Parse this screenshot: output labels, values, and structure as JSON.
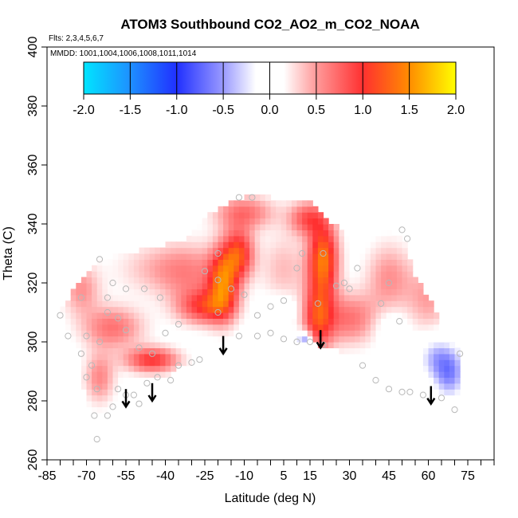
{
  "chart_data": {
    "type": "heatmap",
    "title": "ATOM3 Southbound CO2_AO2_m_CO2_NOAA",
    "flights_note": "Flts: 2,3,4,5,6,7",
    "dates_note": "MMDD: 1001,1004,1006,1008,1011,1014",
    "xlabel": "Latitude (deg N)",
    "ylabel": "Theta (C)",
    "xlim": [
      -85,
      85
    ],
    "ylim": [
      260,
      400
    ],
    "x_ticks": [
      -85,
      -70,
      -55,
      -40,
      -25,
      -10,
      5,
      15,
      30,
      45,
      60,
      75
    ],
    "x_tick_labels": [
      "-85",
      "-70",
      "-55",
      "-40",
      "-25",
      "-10",
      "5",
      "15",
      "30",
      "45",
      "60",
      "75"
    ],
    "x_minor_step": 5,
    "y_ticks": [
      260,
      280,
      300,
      320,
      340,
      360,
      380,
      400
    ],
    "y_tick_labels": [
      "260",
      "280",
      "300",
      "320",
      "340",
      "360",
      "380",
      "400"
    ],
    "colorbar": {
      "range": [
        -2.0,
        2.0
      ],
      "ticks": [
        -2.0,
        -1.5,
        -1.0,
        -0.5,
        0.0,
        0.5,
        1.0,
        1.5,
        2.0
      ],
      "tick_labels": [
        "-2.0",
        "-1.5",
        "-1.0",
        "-0.5",
        "0.0",
        "0.5",
        "1.0",
        "1.5",
        "2.0"
      ],
      "stops": [
        {
          "value": -2.0,
          "color": "#00e5ff"
        },
        {
          "value": -1.5,
          "color": "#1e90ff"
        },
        {
          "value": -1.0,
          "color": "#2030ff"
        },
        {
          "value": -0.5,
          "color": "#9a9aff"
        },
        {
          "value": -0.15,
          "color": "#ffffff"
        },
        {
          "value": 0.15,
          "color": "#ffffff"
        },
        {
          "value": 0.5,
          "color": "#ff9a9a"
        },
        {
          "value": 1.0,
          "color": "#ff3030"
        },
        {
          "value": 1.5,
          "color": "#ff8c00"
        },
        {
          "value": 2.0,
          "color": "#ffff00"
        }
      ]
    },
    "envelope": {
      "latitudes": [
        -80,
        -75,
        -70,
        -66,
        -60,
        -55,
        -50,
        -45,
        -40,
        -35,
        -30,
        -25,
        -20,
        -15,
        -10,
        -5,
        0,
        5,
        10,
        15,
        20,
        25,
        30,
        35,
        40,
        45,
        50,
        55,
        60,
        65,
        70,
        72
      ],
      "theta_bottom": [
        309,
        292,
        282,
        266,
        276,
        280,
        278,
        283,
        288,
        292,
        293,
        295,
        296,
        298,
        300,
        301,
        302,
        302,
        301,
        300,
        298,
        298,
        294,
        290,
        286,
        284,
        283,
        283,
        282,
        279,
        276,
        276
      ],
      "theta_top": [
        310,
        318,
        323,
        327,
        329,
        330,
        331,
        332,
        333,
        334,
        336,
        342,
        345,
        347,
        349,
        349,
        349,
        348,
        349,
        348,
        343,
        339,
        338,
        338,
        338,
        337,
        336,
        322,
        315,
        305,
        298,
        296
      ]
    },
    "anomalies": [
      {
        "lat": -18,
        "theta": 320,
        "value": 1.2,
        "spread_lat": 4,
        "spread_theta": 8
      },
      {
        "lat": -12,
        "theta": 330,
        "value": 1.0,
        "spread_lat": 4,
        "spread_theta": 6
      },
      {
        "lat": -25,
        "theta": 312,
        "value": 0.8,
        "spread_lat": 7,
        "spread_theta": 4
      },
      {
        "lat": 20,
        "theta": 328,
        "value": 1.3,
        "spread_lat": 4,
        "spread_theta": 9
      },
      {
        "lat": 18,
        "theta": 308,
        "value": 0.9,
        "spread_lat": 4,
        "spread_theta": 8
      },
      {
        "lat": 14,
        "theta": 342,
        "value": 0.7,
        "spread_lat": 5,
        "spread_theta": 4
      },
      {
        "lat": 30,
        "theta": 308,
        "value": 0.6,
        "spread_lat": 8,
        "spread_theta": 6
      },
      {
        "lat": -45,
        "theta": 294,
        "value": 0.9,
        "spread_lat": 7,
        "spread_theta": 3
      },
      {
        "lat": -60,
        "theta": 305,
        "value": 0.6,
        "spread_lat": 8,
        "spread_theta": 5
      },
      {
        "lat": -65,
        "theta": 288,
        "value": 0.5,
        "spread_lat": 4,
        "spread_theta": 6
      },
      {
        "lat": -40,
        "theta": 325,
        "value": 0.35,
        "spread_lat": 12,
        "spread_theta": 6
      },
      {
        "lat": -10,
        "theta": 344,
        "value": 0.6,
        "spread_lat": 8,
        "spread_theta": 4
      },
      {
        "lat": 45,
        "theta": 322,
        "value": 0.45,
        "spread_lat": 6,
        "spread_theta": 8
      },
      {
        "lat": 60,
        "theta": 315,
        "value": 0.4,
        "spread_lat": 6,
        "spread_theta": 8
      },
      {
        "lat": -72,
        "theta": 318,
        "value": 0.45,
        "spread_lat": 5,
        "spread_theta": 6
      },
      {
        "lat": 5,
        "theta": 325,
        "value": 0.3,
        "spread_lat": 6,
        "spread_theta": 8
      },
      {
        "lat": -30,
        "theta": 322,
        "value": 0.3,
        "spread_lat": 8,
        "spread_theta": 8
      },
      {
        "lat": 68,
        "theta": 290,
        "value": -0.7,
        "spread_lat": 4,
        "spread_theta": 6
      },
      {
        "lat": 62,
        "theta": 295,
        "value": -0.4,
        "spread_lat": 4,
        "spread_theta": 5
      },
      {
        "lat": 13,
        "theta": 301,
        "value": -0.8,
        "spread_lat": 2,
        "spread_theta": 2
      },
      {
        "lat": 45,
        "theta": 306,
        "value": -0.2,
        "spread_lat": 5,
        "spread_theta": 4
      },
      {
        "lat": 4,
        "theta": 312,
        "value": -0.2,
        "spread_lat": 4,
        "spread_theta": 3
      }
    ],
    "sample_points": [
      [
        -80,
        309
      ],
      [
        -77,
        302
      ],
      [
        -72,
        296
      ],
      [
        -70,
        288
      ],
      [
        -68,
        292
      ],
      [
        -66,
        284
      ],
      [
        -67,
        275
      ],
      [
        -66,
        267
      ],
      [
        -62,
        275
      ],
      [
        -60,
        278
      ],
      [
        -58,
        284
      ],
      [
        -55,
        282
      ],
      [
        -52,
        282
      ],
      [
        -50,
        279
      ],
      [
        -47,
        286
      ],
      [
        -43,
        288
      ],
      [
        -38,
        287
      ],
      [
        -35,
        292
      ],
      [
        -30,
        293
      ],
      [
        -27,
        294
      ],
      [
        -62,
        310
      ],
      [
        -58,
        308
      ],
      [
        -55,
        304
      ],
      [
        -50,
        298
      ],
      [
        -45,
        296
      ],
      [
        -40,
        303
      ],
      [
        -35,
        306
      ],
      [
        -60,
        320
      ],
      [
        -55,
        318
      ],
      [
        -48,
        318
      ],
      [
        -42,
        315
      ],
      [
        -65,
        328
      ],
      [
        -62,
        315
      ],
      [
        -65,
        300
      ],
      [
        -70,
        302
      ],
      [
        -72,
        315
      ],
      [
        -25,
        324
      ],
      [
        -20,
        321
      ],
      [
        -15,
        318
      ],
      [
        -10,
        316
      ],
      [
        -20,
        310
      ],
      [
        -12,
        302
      ],
      [
        -5,
        302
      ],
      [
        0,
        303
      ],
      [
        5,
        301
      ],
      [
        10,
        300
      ],
      [
        15,
        300
      ],
      [
        20,
        299
      ],
      [
        5,
        314
      ],
      [
        0,
        312
      ],
      [
        -5,
        309
      ],
      [
        -12,
        349
      ],
      [
        -7,
        349
      ],
      [
        -20,
        330
      ],
      [
        10,
        325
      ],
      [
        12,
        330
      ],
      [
        20,
        330
      ],
      [
        25,
        319
      ],
      [
        30,
        318
      ],
      [
        35,
        292
      ],
      [
        40,
        287
      ],
      [
        45,
        284
      ],
      [
        50,
        283
      ],
      [
        53,
        283
      ],
      [
        58,
        282
      ],
      [
        65,
        281
      ],
      [
        70,
        277
      ],
      [
        72,
        296
      ],
      [
        49,
        307
      ],
      [
        42,
        313
      ],
      [
        45,
        320
      ],
      [
        52,
        335
      ],
      [
        50,
        338
      ],
      [
        28,
        320
      ],
      [
        33,
        325
      ],
      [
        18,
        313
      ]
    ],
    "arrows": [
      {
        "lat": -55,
        "theta_top": 284,
        "theta_bottom": 278
      },
      {
        "lat": -45,
        "theta_top": 286,
        "theta_bottom": 280
      },
      {
        "lat": -18,
        "theta_top": 302,
        "theta_bottom": 296
      },
      {
        "lat": 19,
        "theta_top": 304,
        "theta_bottom": 298
      },
      {
        "lat": 61,
        "theta_top": 285,
        "theta_bottom": 279
      }
    ]
  }
}
